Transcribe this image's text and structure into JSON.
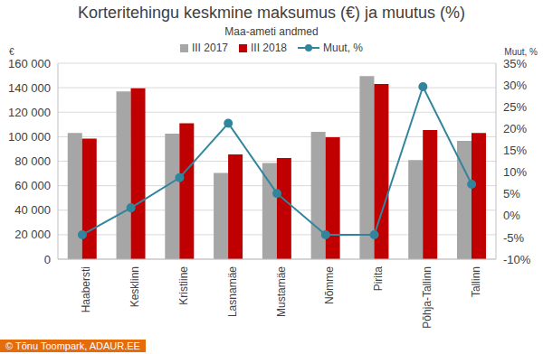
{
  "chart_data": {
    "type": "bar",
    "title": "Korteritehingu keskmine maksumus (€) ja muutus (%)",
    "subtitle": "Maa-ameti andmed",
    "y_label": "€",
    "y2_label": "Muut, %",
    "credit": "© Tõnu Toompark, ADAUR.EE",
    "categories": [
      "Haabersti",
      "Kesklinn",
      "Kristiine",
      "Lasnamäe",
      "Mustamäe",
      "Nõmme",
      "Pirita",
      "Põhja-Tallinn",
      "Tallinn"
    ],
    "series": [
      {
        "name": "III 2017",
        "color": "#a6a6a6",
        "type": "bar",
        "values": [
          103000,
          137000,
          102500,
          70500,
          78500,
          104000,
          149500,
          81000,
          96500
        ]
      },
      {
        "name": "III 2018",
        "color": "#c00000",
        "type": "bar",
        "values": [
          98500,
          139500,
          111000,
          85500,
          82500,
          99500,
          143000,
          105500,
          103000
        ]
      },
      {
        "name": "Muut, %",
        "color": "#31859c",
        "type": "line",
        "marker": "circle",
        "axis": "y2",
        "values": [
          -4.4,
          1.8,
          8.7,
          21.2,
          5.1,
          -4.4,
          -4.4,
          29.6,
          7.2
        ]
      }
    ],
    "ylim": [
      0,
      160000
    ],
    "yticks": [
      0,
      {
        "value": 20000,
        "label": "20 000"
      },
      {
        "value": 40000,
        "label": "40 000"
      },
      {
        "value": 60000,
        "label": "60 000"
      },
      {
        "value": 80000,
        "label": "80 000"
      },
      {
        "value": 100000,
        "label": "100 000"
      },
      {
        "value": 120000,
        "label": "120 000"
      },
      {
        "value": 140000,
        "label": "140 000"
      },
      {
        "value": 160000,
        "label": "160 000"
      }
    ],
    "y2lim": [
      -10,
      35
    ],
    "y2ticks": [
      {
        "value": -10,
        "label": "-10%"
      },
      {
        "value": -5,
        "label": "-5%"
      },
      {
        "value": 0,
        "label": "0%"
      },
      {
        "value": 5,
        "label": "5%"
      },
      {
        "value": 10,
        "label": "10%"
      },
      {
        "value": 15,
        "label": "15%"
      },
      {
        "value": 20,
        "label": "20%"
      },
      {
        "value": 25,
        "label": "25%"
      },
      {
        "value": 30,
        "label": "30%"
      },
      {
        "value": 35,
        "label": "35%"
      }
    ],
    "grid": true,
    "legend": "top"
  }
}
